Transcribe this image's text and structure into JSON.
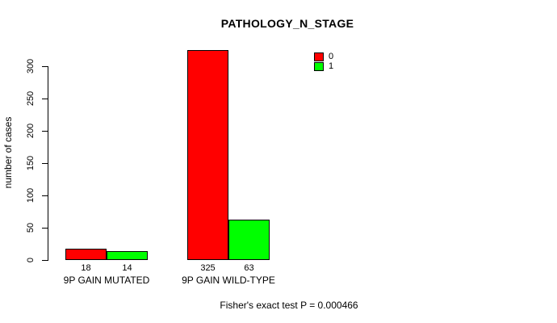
{
  "chart_data": {
    "type": "bar",
    "title": "PATHOLOGY_N_STAGE",
    "ylabel": "number of cases",
    "xlabel": "",
    "categories": [
      "9P GAIN MUTATED",
      "9P GAIN WILD-TYPE"
    ],
    "series": [
      {
        "name": "0",
        "color": "#ff0000",
        "values": [
          18,
          325
        ]
      },
      {
        "name": "1",
        "color": "#00ff00",
        "values": [
          14,
          63
        ]
      }
    ],
    "yticks": [
      0,
      50,
      100,
      150,
      200,
      250,
      300
    ],
    "ylim": [
      0,
      325
    ],
    "grid": false,
    "legend_position": "top-right",
    "footer": "Fisher's exact test P = 0.000466"
  }
}
